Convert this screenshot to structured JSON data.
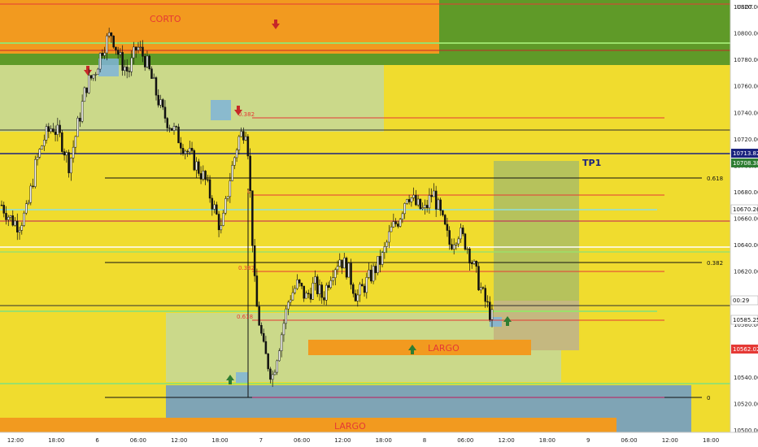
{
  "chart": {
    "currency": "USDT",
    "zones": {
      "short_label": "CORTO",
      "long_label_mid": "LARGO",
      "long_label_bottom": "LARGO",
      "tp_label": "TP1"
    },
    "fib_levels": [
      {
        "label": "0.618"
      },
      {
        "label": "0.382"
      },
      {
        "label": "0"
      }
    ],
    "red_fib_labels": [
      "0.382",
      "0",
      "0.382",
      "0.618"
    ],
    "price_badges": [
      {
        "value": "10713.82",
        "color": "#1a237e"
      },
      {
        "value": "10708.38",
        "color": "#2e7d32"
      },
      {
        "value": "10670.26",
        "color": "#ffffff"
      },
      {
        "value": "00:29",
        "color": "#ffffff"
      },
      {
        "value": "10585.25",
        "color": "#ffffff"
      },
      {
        "value": "10562.02",
        "color": "#e53935"
      }
    ]
  },
  "chart_data": {
    "type": "candlestick",
    "y_ticks": [
      "10820.00",
      "10800.00",
      "10780.00",
      "10760.00",
      "10740.00",
      "10720.00",
      "10700.00",
      "10680.00",
      "10660.00",
      "10640.00",
      "10620.00",
      "10600.00",
      "10580.00",
      "10560.00",
      "10540.00",
      "10520.00",
      "10500.00"
    ],
    "ylim": [
      10500,
      10820
    ],
    "x_ticks": [
      "12:00",
      "18:00",
      "6",
      "06:00",
      "12:00",
      "18:00",
      "7",
      "06:00",
      "12:00",
      "18:00",
      "8",
      "06:00",
      "12:00",
      "18:00",
      "9",
      "06:00",
      "12:00",
      "18:00"
    ],
    "close_path": [
      10670,
      10660,
      10655,
      10665,
      10700,
      10720,
      10730,
      10720,
      10700,
      10730,
      10760,
      10770,
      10790,
      10800,
      10780,
      10770,
      10790,
      10780,
      10760,
      10740,
      10730,
      10720,
      10710,
      10700,
      10690,
      10670,
      10650,
      10690,
      10720,
      10730,
      10600,
      10560,
      10540,
      10570,
      10600,
      10610,
      10600,
      10610,
      10600,
      10620,
      10630,
      10620,
      10600,
      10610,
      10620,
      10630,
      10650,
      10660,
      10680,
      10670,
      10665,
      10680,
      10660,
      10640,
      10650,
      10640,
      10620,
      10600,
      10585
    ]
  }
}
